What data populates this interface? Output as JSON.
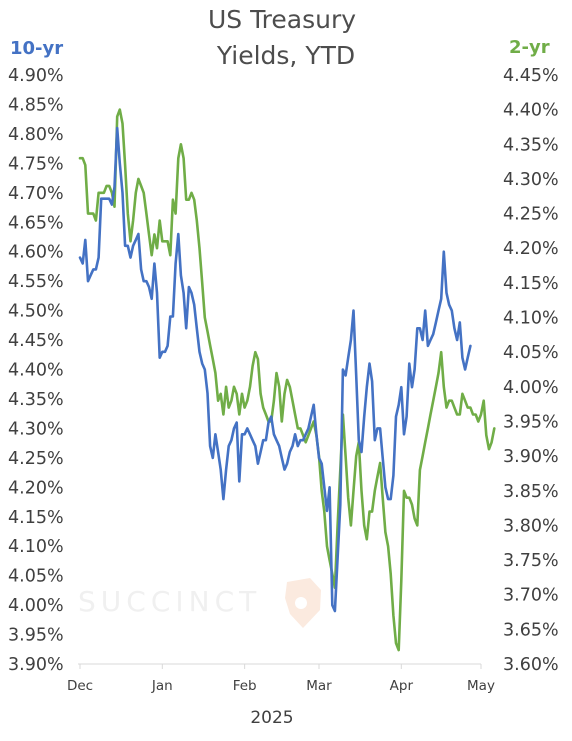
{
  "chart_data": {
    "type": "line",
    "title_lines": [
      "US Treasury",
      "Yields, YTD"
    ],
    "xlabel": "2025",
    "x_ticks": [
      {
        "label": "Dec",
        "x": 0
      },
      {
        "label": "Jan",
        "x": 31
      },
      {
        "label": "Feb",
        "x": 62
      },
      {
        "label": "Mar",
        "x": 90
      },
      {
        "label": "Apr",
        "x": 121
      },
      {
        "label": "May",
        "x": 151
      }
    ],
    "x_range": [
      0,
      151
    ],
    "left_axis": {
      "label": "10-yr",
      "color": "#4472c4",
      "range": [
        3.9,
        4.9
      ],
      "ticks": [
        "4.90%",
        "4.85%",
        "4.80%",
        "4.75%",
        "4.70%",
        "4.65%",
        "4.60%",
        "4.55%",
        "4.50%",
        "4.45%",
        "4.40%",
        "4.35%",
        "4.30%",
        "4.25%",
        "4.20%",
        "4.15%",
        "4.10%",
        "4.05%",
        "4.00%",
        "3.95%",
        "3.90%"
      ]
    },
    "right_axis": {
      "label": "2-yr",
      "color": "#70ad47",
      "range": [
        3.6,
        4.45
      ],
      "ticks": [
        "4.45%",
        "4.40%",
        "4.35%",
        "4.30%",
        "4.25%",
        "4.20%",
        "4.15%",
        "4.10%",
        "4.05%",
        "4.00%",
        "3.95%",
        "3.90%",
        "3.85%",
        "3.80%",
        "3.75%",
        "3.70%",
        "3.65%",
        "3.60%"
      ]
    },
    "grid": false,
    "series": [
      {
        "name": "10-yr",
        "axis": "left",
        "color": "#4472c4",
        "points": [
          [
            0,
            4.59
          ],
          [
            1,
            4.58
          ],
          [
            2,
            4.62
          ],
          [
            3,
            4.55
          ],
          [
            4,
            4.56
          ],
          [
            5,
            4.57
          ],
          [
            6,
            4.57
          ],
          [
            7,
            4.59
          ],
          [
            8,
            4.69
          ],
          [
            9,
            4.69
          ],
          [
            10,
            4.69
          ],
          [
            11,
            4.69
          ],
          [
            12,
            4.68
          ],
          [
            13,
            4.71
          ],
          [
            14,
            4.81
          ],
          [
            15,
            4.75
          ],
          [
            16,
            4.7
          ],
          [
            17,
            4.61
          ],
          [
            18,
            4.61
          ],
          [
            19,
            4.59
          ],
          [
            20,
            4.61
          ],
          [
            21,
            4.62
          ],
          [
            22,
            4.63
          ],
          [
            23,
            4.57
          ],
          [
            24,
            4.55
          ],
          [
            25,
            4.55
          ],
          [
            26,
            4.54
          ],
          [
            27,
            4.52
          ],
          [
            28,
            4.58
          ],
          [
            29,
            4.53
          ],
          [
            30,
            4.42
          ],
          [
            31,
            4.43
          ],
          [
            32,
            4.43
          ],
          [
            33,
            4.44
          ],
          [
            34,
            4.49
          ],
          [
            35,
            4.49
          ],
          [
            36,
            4.58
          ],
          [
            37,
            4.63
          ],
          [
            38,
            4.56
          ],
          [
            39,
            4.53
          ],
          [
            40,
            4.47
          ],
          [
            41,
            4.54
          ],
          [
            42,
            4.53
          ],
          [
            43,
            4.51
          ],
          [
            44,
            4.47
          ],
          [
            45,
            4.43
          ],
          [
            46,
            4.41
          ],
          [
            47,
            4.4
          ],
          [
            48,
            4.36
          ],
          [
            49,
            4.27
          ],
          [
            50,
            4.25
          ],
          [
            51,
            4.29
          ],
          [
            52,
            4.26
          ],
          [
            53,
            4.23
          ],
          [
            54,
            4.18
          ],
          [
            55,
            4.23
          ],
          [
            56,
            4.27
          ],
          [
            57,
            4.28
          ],
          [
            58,
            4.3
          ],
          [
            59,
            4.31
          ],
          [
            60,
            4.21
          ],
          [
            61,
            4.29
          ],
          [
            62,
            4.29
          ],
          [
            63,
            4.3
          ],
          [
            64,
            4.29
          ],
          [
            65,
            4.28
          ],
          [
            66,
            4.27
          ],
          [
            67,
            4.24
          ],
          [
            68,
            4.26
          ],
          [
            69,
            4.28
          ],
          [
            70,
            4.28
          ],
          [
            71,
            4.31
          ],
          [
            72,
            4.32
          ],
          [
            73,
            4.29
          ],
          [
            74,
            4.28
          ],
          [
            75,
            4.27
          ],
          [
            76,
            4.25
          ],
          [
            77,
            4.23
          ],
          [
            78,
            4.24
          ],
          [
            79,
            4.26
          ],
          [
            80,
            4.27
          ],
          [
            81,
            4.29
          ],
          [
            82,
            4.27
          ],
          [
            83,
            4.28
          ],
          [
            84,
            4.28
          ],
          [
            85,
            4.29
          ],
          [
            86,
            4.3
          ],
          [
            87,
            4.32
          ],
          [
            88,
            4.34
          ],
          [
            89,
            4.29
          ],
          [
            90,
            4.25
          ],
          [
            91,
            4.24
          ],
          [
            92,
            4.2
          ],
          [
            93,
            4.16
          ],
          [
            94,
            4.2
          ],
          [
            95,
            4.0
          ],
          [
            96,
            3.99
          ],
          [
            97,
            4.08
          ],
          [
            98,
            4.17
          ],
          [
            99,
            4.4
          ],
          [
            100,
            4.39
          ],
          [
            101,
            4.42
          ],
          [
            102,
            4.45
          ],
          [
            103,
            4.5
          ],
          [
            104,
            4.39
          ],
          [
            105,
            4.28
          ],
          [
            106,
            4.26
          ],
          [
            107,
            4.32
          ],
          [
            108,
            4.37
          ],
          [
            109,
            4.41
          ],
          [
            110,
            4.38
          ],
          [
            111,
            4.28
          ],
          [
            112,
            4.3
          ],
          [
            113,
            4.3
          ],
          [
            114,
            4.25
          ],
          [
            115,
            4.2
          ],
          [
            116,
            4.18
          ],
          [
            117,
            4.18
          ],
          [
            118,
            4.22
          ],
          [
            119,
            4.32
          ],
          [
            120,
            4.34
          ],
          [
            121,
            4.37
          ],
          [
            122,
            4.29
          ],
          [
            123,
            4.32
          ],
          [
            124,
            4.41
          ],
          [
            125,
            4.37
          ],
          [
            126,
            4.4
          ],
          [
            127,
            4.47
          ],
          [
            128,
            4.47
          ],
          [
            129,
            4.45
          ],
          [
            130,
            4.5
          ],
          [
            131,
            4.44
          ],
          [
            132,
            4.45
          ],
          [
            133,
            4.46
          ],
          [
            134,
            4.48
          ],
          [
            135,
            4.5
          ],
          [
            136,
            4.52
          ],
          [
            137,
            4.6
          ],
          [
            138,
            4.53
          ],
          [
            139,
            4.51
          ],
          [
            140,
            4.5
          ],
          [
            141,
            4.47
          ],
          [
            142,
            4.45
          ],
          [
            143,
            4.48
          ],
          [
            144,
            4.42
          ],
          [
            145,
            4.4
          ],
          [
            146,
            4.42
          ],
          [
            147,
            4.44
          ]
        ]
      },
      {
        "name": "2-yr",
        "axis": "right",
        "color": "#70ad47",
        "points": [
          [
            0,
            4.33
          ],
          [
            1,
            4.33
          ],
          [
            2,
            4.32
          ],
          [
            3,
            4.25
          ],
          [
            4,
            4.25
          ],
          [
            5,
            4.25
          ],
          [
            6,
            4.24
          ],
          [
            7,
            4.28
          ],
          [
            8,
            4.28
          ],
          [
            9,
            4.28
          ],
          [
            10,
            4.29
          ],
          [
            11,
            4.29
          ],
          [
            12,
            4.28
          ],
          [
            13,
            4.26
          ],
          [
            14,
            4.39
          ],
          [
            15,
            4.4
          ],
          [
            16,
            4.38
          ],
          [
            17,
            4.32
          ],
          [
            18,
            4.25
          ],
          [
            19,
            4.21
          ],
          [
            20,
            4.24
          ],
          [
            21,
            4.28
          ],
          [
            22,
            4.3
          ],
          [
            23,
            4.29
          ],
          [
            24,
            4.28
          ],
          [
            25,
            4.25
          ],
          [
            26,
            4.22
          ],
          [
            27,
            4.19
          ],
          [
            28,
            4.22
          ],
          [
            29,
            4.2
          ],
          [
            30,
            4.24
          ],
          [
            31,
            4.21
          ],
          [
            32,
            4.21
          ],
          [
            33,
            4.21
          ],
          [
            34,
            4.19
          ],
          [
            35,
            4.27
          ],
          [
            36,
            4.25
          ],
          [
            37,
            4.33
          ],
          [
            38,
            4.35
          ],
          [
            39,
            4.33
          ],
          [
            40,
            4.27
          ],
          [
            41,
            4.27
          ],
          [
            42,
            4.28
          ],
          [
            43,
            4.27
          ],
          [
            44,
            4.24
          ],
          [
            45,
            4.2
          ],
          [
            46,
            4.15
          ],
          [
            47,
            4.1
          ],
          [
            48,
            4.08
          ],
          [
            49,
            4.06
          ],
          [
            50,
            4.04
          ],
          [
            51,
            4.02
          ],
          [
            52,
            3.98
          ],
          [
            53,
            3.99
          ],
          [
            54,
            3.96
          ],
          [
            55,
            4.0
          ],
          [
            56,
            3.97
          ],
          [
            57,
            3.98
          ],
          [
            58,
            4.0
          ],
          [
            59,
            3.99
          ],
          [
            60,
            3.96
          ],
          [
            61,
            3.99
          ],
          [
            62,
            3.97
          ],
          [
            63,
            3.98
          ],
          [
            64,
            4.0
          ],
          [
            65,
            4.03
          ],
          [
            66,
            4.05
          ],
          [
            67,
            4.04
          ],
          [
            68,
            3.99
          ],
          [
            69,
            3.97
          ],
          [
            70,
            3.96
          ],
          [
            71,
            3.95
          ],
          [
            72,
            3.95
          ],
          [
            73,
            3.98
          ],
          [
            74,
            4.02
          ],
          [
            75,
            4.0
          ],
          [
            76,
            3.95
          ],
          [
            77,
            3.99
          ],
          [
            78,
            4.01
          ],
          [
            79,
            4.0
          ],
          [
            80,
            3.98
          ],
          [
            81,
            3.96
          ],
          [
            82,
            3.94
          ],
          [
            83,
            3.94
          ],
          [
            84,
            3.93
          ],
          [
            85,
            3.92
          ],
          [
            86,
            3.93
          ],
          [
            87,
            3.94
          ],
          [
            88,
            3.95
          ],
          [
            89,
            3.93
          ],
          [
            90,
            3.9
          ],
          [
            91,
            3.85
          ],
          [
            92,
            3.82
          ],
          [
            93,
            3.77
          ],
          [
            94,
            3.75
          ],
          [
            95,
            3.73
          ],
          [
            96,
            3.71
          ],
          [
            97,
            3.8
          ],
          [
            98,
            3.88
          ],
          [
            99,
            3.96
          ],
          [
            100,
            3.9
          ],
          [
            101,
            3.84
          ],
          [
            102,
            3.8
          ],
          [
            103,
            3.85
          ],
          [
            104,
            3.9
          ],
          [
            105,
            3.92
          ],
          [
            106,
            3.85
          ],
          [
            107,
            3.8
          ],
          [
            108,
            3.78
          ],
          [
            109,
            3.82
          ],
          [
            110,
            3.82
          ],
          [
            111,
            3.85
          ],
          [
            112,
            3.87
          ],
          [
            113,
            3.89
          ],
          [
            114,
            3.84
          ],
          [
            115,
            3.79
          ],
          [
            116,
            3.77
          ],
          [
            117,
            3.73
          ],
          [
            118,
            3.67
          ],
          [
            119,
            3.63
          ],
          [
            120,
            3.62
          ],
          [
            121,
            3.72
          ],
          [
            122,
            3.85
          ],
          [
            123,
            3.84
          ],
          [
            124,
            3.84
          ],
          [
            125,
            3.83
          ],
          [
            126,
            3.81
          ],
          [
            127,
            3.8
          ],
          [
            128,
            3.88
          ],
          [
            129,
            3.9
          ],
          [
            130,
            3.92
          ],
          [
            131,
            3.94
          ],
          [
            132,
            3.96
          ],
          [
            133,
            3.98
          ],
          [
            134,
            4.0
          ],
          [
            135,
            4.02
          ],
          [
            136,
            4.05
          ],
          [
            137,
            4.0
          ],
          [
            138,
            3.97
          ],
          [
            139,
            3.98
          ],
          [
            140,
            3.98
          ],
          [
            141,
            3.97
          ],
          [
            142,
            3.96
          ],
          [
            143,
            3.96
          ],
          [
            144,
            3.99
          ],
          [
            145,
            3.98
          ],
          [
            146,
            3.97
          ],
          [
            147,
            3.97
          ],
          [
            148,
            3.96
          ],
          [
            149,
            3.96
          ],
          [
            150,
            3.95
          ],
          [
            151,
            3.96
          ],
          [
            152,
            3.98
          ],
          [
            153,
            3.93
          ],
          [
            154,
            3.91
          ],
          [
            155,
            3.92
          ],
          [
            156,
            3.94
          ]
        ]
      }
    ]
  },
  "watermark": {
    "text": "SUCCINCT",
    "icon": "shield-icon",
    "color": "#f8e6dc"
  }
}
